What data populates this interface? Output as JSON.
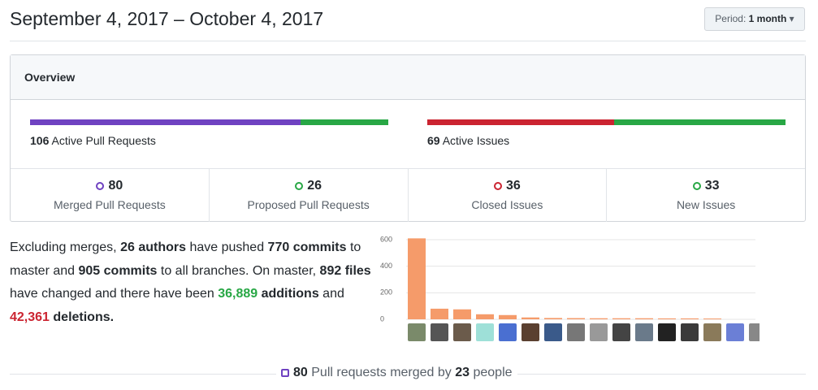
{
  "header": {
    "title": "September 4, 2017 – October 4, 2017",
    "period_label": "Period:",
    "period_value": "1 month"
  },
  "overview": {
    "title": "Overview",
    "pull_requests": {
      "count": "106",
      "label": "Active Pull Requests"
    },
    "issues": {
      "count": "69",
      "label": "Active Issues"
    },
    "stats": [
      {
        "value": 80,
        "label": "Merged Pull Requests",
        "color": "#6f42c1"
      },
      {
        "value": 26,
        "label": "Proposed Pull Requests",
        "color": "#28a745"
      },
      {
        "value": 36,
        "label": "Closed Issues",
        "color": "#cb2431"
      },
      {
        "value": 33,
        "label": "New Issues",
        "color": "#28a745"
      }
    ]
  },
  "summary": [
    "Excluding merges,",
    "26 authors",
    "have pushed",
    "770 commits",
    "to master and",
    "905 commits",
    "to all branches. On master,",
    "892 files",
    "have changed and there have been",
    "36,889",
    "additions",
    "and",
    "42,361",
    "deletions."
  ],
  "chart_data": {
    "type": "bar",
    "values": [
      610,
      80,
      75,
      38,
      32,
      14,
      10,
      9,
      8,
      8,
      8,
      7,
      7,
      6,
      0,
      0
    ],
    "color": "#f59b6a",
    "ylim": [
      0,
      600
    ],
    "yticks": [
      0,
      200,
      400,
      600
    ],
    "grid": true
  },
  "footer": {
    "count": "80",
    "text": "Pull requests merged by",
    "people": "23",
    "suffix": "people"
  }
}
